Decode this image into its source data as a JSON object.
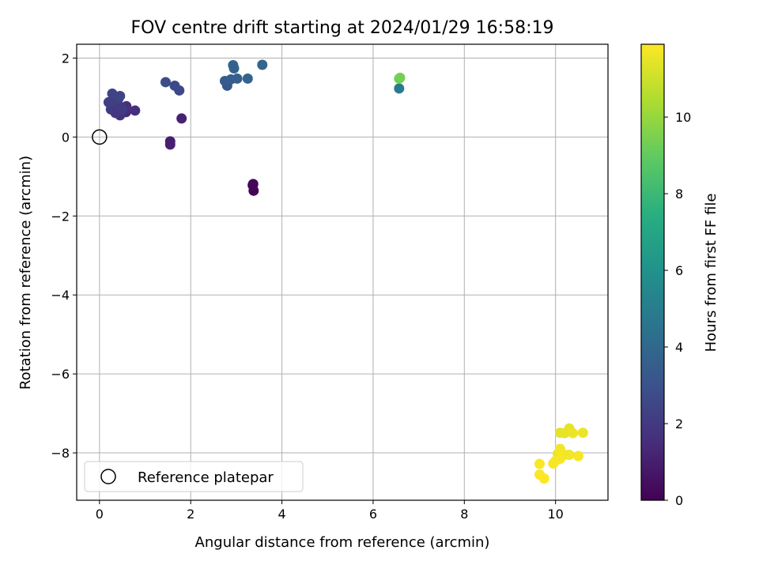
{
  "chart_data": {
    "type": "scatter",
    "title": "FOV centre drift starting at 2024/01/29 16:58:19",
    "xlabel": "Angular distance from reference (arcmin)",
    "ylabel": "Rotation from reference (arcmin)",
    "xlim": [
      -0.5,
      11.15
    ],
    "ylim": [
      -9.2,
      2.35
    ],
    "xticks": [
      0,
      2,
      4,
      6,
      8,
      10
    ],
    "xtick_labels": [
      "0",
      "2",
      "4",
      "6",
      "8",
      "10"
    ],
    "yticks": [
      2,
      0,
      -2,
      -4,
      -6,
      -8
    ],
    "ytick_labels": [
      "2",
      "0",
      "−2",
      "−4",
      "−6",
      "−8"
    ],
    "grid": true,
    "legend": {
      "position": "lower-left",
      "label": "Reference platepar"
    },
    "reference_point": {
      "x": 0,
      "y": 0
    },
    "colorbar": {
      "label": "Hours from first FF file",
      "colormap": "viridis",
      "range": [
        0,
        11.9
      ],
      "ticks": [
        0,
        2,
        4,
        6,
        8,
        10
      ],
      "tick_labels": [
        "0",
        "2",
        "4",
        "6",
        "8",
        "10"
      ]
    },
    "points": [
      {
        "x": 3.37,
        "y": -1.19,
        "t": 0.1
      },
      {
        "x": 3.38,
        "y": -1.36,
        "t": 0.15
      },
      {
        "x": 3.36,
        "y": -1.22,
        "t": 0.2
      },
      {
        "x": 1.55,
        "y": -0.11,
        "t": 1.0
      },
      {
        "x": 1.55,
        "y": -0.19,
        "t": 1.05
      },
      {
        "x": 1.8,
        "y": 0.47,
        "t": 1.1
      },
      {
        "x": 0.58,
        "y": 0.63,
        "t": 1.5
      },
      {
        "x": 0.78,
        "y": 0.67,
        "t": 1.6
      },
      {
        "x": 0.59,
        "y": 0.78,
        "t": 1.7
      },
      {
        "x": 0.45,
        "y": 0.55,
        "t": 1.8
      },
      {
        "x": 0.35,
        "y": 0.61,
        "t": 1.9
      },
      {
        "x": 0.25,
        "y": 0.7,
        "t": 2.0
      },
      {
        "x": 0.42,
        "y": 0.8,
        "t": 2.05
      },
      {
        "x": 0.5,
        "y": 0.7,
        "t": 2.1
      },
      {
        "x": 0.2,
        "y": 0.88,
        "t": 2.2
      },
      {
        "x": 0.32,
        "y": 0.92,
        "t": 2.25
      },
      {
        "x": 0.42,
        "y": 0.98,
        "t": 2.3
      },
      {
        "x": 0.28,
        "y": 1.1,
        "t": 2.4
      },
      {
        "x": 0.45,
        "y": 1.04,
        "t": 2.45
      },
      {
        "x": 1.75,
        "y": 1.18,
        "t": 2.6
      },
      {
        "x": 1.65,
        "y": 1.3,
        "t": 2.7
      },
      {
        "x": 1.45,
        "y": 1.39,
        "t": 2.8
      },
      {
        "x": 2.8,
        "y": 1.3,
        "t": 3.3
      },
      {
        "x": 2.75,
        "y": 1.42,
        "t": 3.4
      },
      {
        "x": 2.88,
        "y": 1.46,
        "t": 3.5
      },
      {
        "x": 3.02,
        "y": 1.48,
        "t": 3.6
      },
      {
        "x": 2.95,
        "y": 1.74,
        "t": 3.7
      },
      {
        "x": 2.93,
        "y": 1.82,
        "t": 3.75
      },
      {
        "x": 3.25,
        "y": 1.48,
        "t": 3.8
      },
      {
        "x": 3.57,
        "y": 1.83,
        "t": 3.9
      },
      {
        "x": 6.57,
        "y": 1.23,
        "t": 4.9
      },
      {
        "x": 6.57,
        "y": 1.48,
        "t": 9.3
      },
      {
        "x": 6.59,
        "y": 1.5,
        "t": 9.4
      },
      {
        "x": 10.1,
        "y": -7.49,
        "t": 11.4
      },
      {
        "x": 10.2,
        "y": -7.5,
        "t": 11.5
      },
      {
        "x": 10.3,
        "y": -7.38,
        "t": 11.5
      },
      {
        "x": 10.38,
        "y": -7.5,
        "t": 11.6
      },
      {
        "x": 10.6,
        "y": -7.49,
        "t": 11.6
      },
      {
        "x": 10.05,
        "y": -8.02,
        "t": 11.6
      },
      {
        "x": 10.1,
        "y": -7.9,
        "t": 11.7
      },
      {
        "x": 10.2,
        "y": -8.05,
        "t": 11.7
      },
      {
        "x": 10.3,
        "y": -8.05,
        "t": 11.7
      },
      {
        "x": 10.5,
        "y": -8.08,
        "t": 11.75
      },
      {
        "x": 10.0,
        "y": -8.2,
        "t": 11.8
      },
      {
        "x": 10.1,
        "y": -8.15,
        "t": 11.8
      },
      {
        "x": 9.95,
        "y": -8.27,
        "t": 11.8
      },
      {
        "x": 9.65,
        "y": -8.28,
        "t": 11.85
      },
      {
        "x": 9.65,
        "y": -8.55,
        "t": 11.85
      },
      {
        "x": 9.75,
        "y": -8.65,
        "t": 11.9
      }
    ]
  }
}
